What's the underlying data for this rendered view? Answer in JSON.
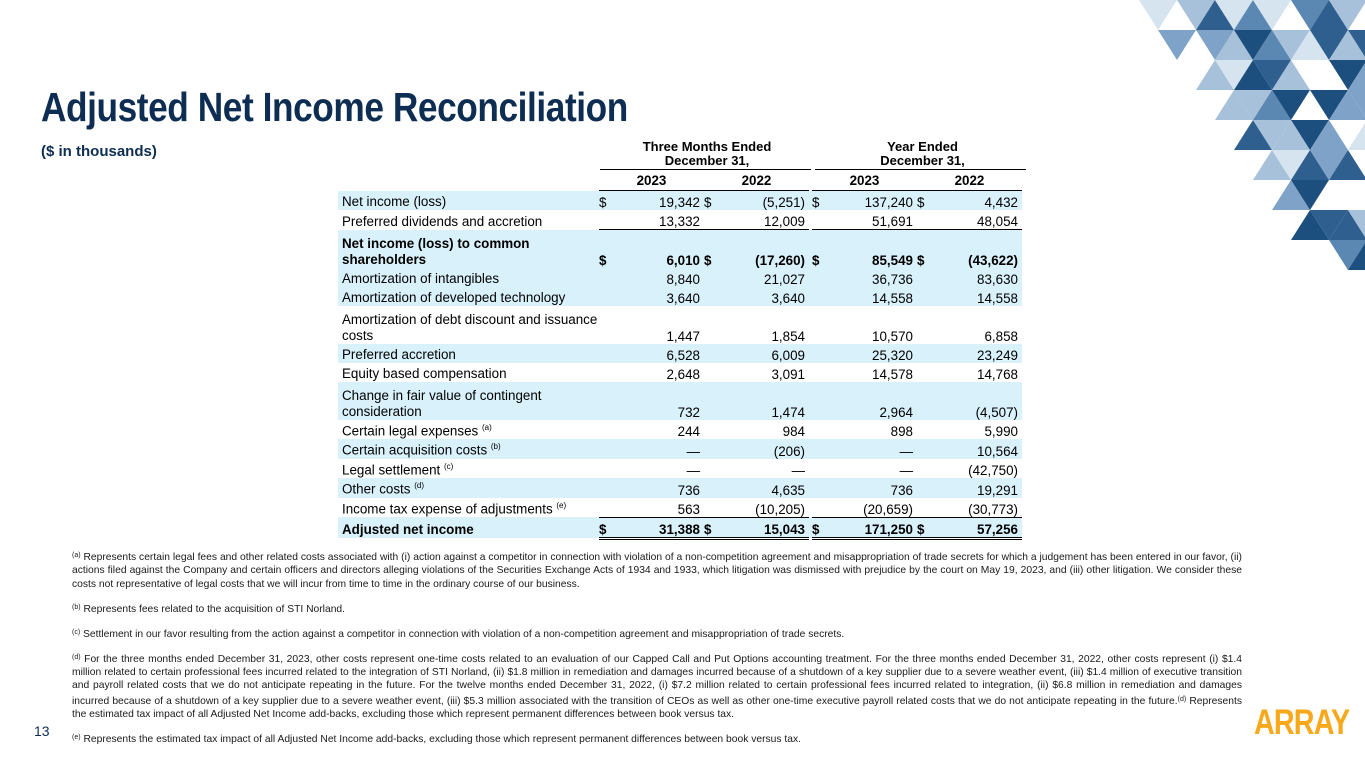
{
  "title": "Adjusted Net Income Reconciliation",
  "subtitle": "($ in thousands)",
  "table": {
    "group_headers": [
      {
        "line1": "Three Months Ended",
        "line2": "December 31,"
      },
      {
        "line1": "Year Ended",
        "line2": "December 31,"
      }
    ],
    "years": [
      "2023",
      "2022",
      "2023",
      "2022"
    ],
    "currency_symbol": "$",
    "rows": [
      {
        "label": "Net income (loss)",
        "values": [
          "19,342",
          "(5,251)",
          "137,240",
          "4,432"
        ]
      },
      {
        "label": "Preferred dividends and accretion",
        "values": [
          "13,332",
          "12,009",
          "51,691",
          "48,054"
        ]
      },
      {
        "label": "Net income (loss) to common shareholders",
        "values": [
          "6,010",
          "(17,260)",
          "85,549",
          "(43,622)"
        ]
      },
      {
        "label": "Amortization of intangibles",
        "values": [
          "8,840",
          "21,027",
          "36,736",
          "83,630"
        ]
      },
      {
        "label": "Amortization of developed technology",
        "values": [
          "3,640",
          "3,640",
          "14,558",
          "14,558"
        ]
      },
      {
        "label": "Amortization of debt discount and issuance costs",
        "values": [
          "1,447",
          "1,854",
          "10,570",
          "6,858"
        ]
      },
      {
        "label": "Preferred accretion",
        "values": [
          "6,528",
          "6,009",
          "25,320",
          "23,249"
        ]
      },
      {
        "label": "Equity based compensation",
        "values": [
          "2,648",
          "3,091",
          "14,578",
          "14,768"
        ]
      },
      {
        "label": "Change in fair value of contingent consideration",
        "values": [
          "732",
          "1,474",
          "2,964",
          "(4,507)"
        ]
      },
      {
        "label": "Certain legal expenses",
        "note": "(a)",
        "values": [
          "244",
          "984",
          "898",
          "5,990"
        ]
      },
      {
        "label": "Certain acquisition costs",
        "note": "(b)",
        "values": [
          "—",
          "(206)",
          "—",
          "10,564"
        ]
      },
      {
        "label": "Legal settlement",
        "note": "(c)",
        "values": [
          "—",
          "—",
          "—",
          "(42,750)"
        ]
      },
      {
        "label": "Other costs",
        "note": "(d)",
        "values": [
          "736",
          "4,635",
          "736",
          "19,291"
        ]
      },
      {
        "label": "Income tax expense of adjustments",
        "note": "(e)",
        "values": [
          "563",
          "(10,205)",
          "(20,659)",
          "(30,773)"
        ]
      },
      {
        "label": "Adjusted net income",
        "values": [
          "31,388",
          "15,043",
          "171,250",
          "57,256"
        ]
      }
    ]
  },
  "footnotes": {
    "a": {
      "marker": "(a)",
      "text": "Represents certain legal fees and other related costs associated with (i) action against a competitor in connection with violation of a non-competition agreement and misappropriation of trade secrets for which a judgement has been entered in our favor, (ii) actions filed against the Company and certain officers and directors alleging violations of the Securities Exchange Acts of 1934 and 1933, which litigation was dismissed with prejudice by the court on May 19, 2023, and (iii) other litigation. We consider these costs not representative of legal costs that we will incur from time to time in the ordinary course of our business."
    },
    "b": {
      "marker": "(b)",
      "text": "Represents fees related to the acquisition of STI Norland."
    },
    "c": {
      "marker": "(c)",
      "text": "Settlement in our favor resulting from the action against a competitor in connection with violation of a non-competition agreement and misappropriation of trade secrets."
    },
    "d": {
      "marker": "(d)",
      "text": "For the three months ended December 31, 2023, other costs represent one-time costs related to an evaluation of our Capped Call and Put Options accounting treatment. For the three months ended December 31, 2022, other costs represent (i) $1.4 million related to certain professional fees incurred related to the integration of STI Norland, (ii) $1.8 million in remediation and damages incurred because of a shutdown of a key supplier due to a severe weather event, (iii) $1.4 million of executive transition and payroll related costs that we do not anticipate repeating in the future. For the twelve months ended December 31, 2022, (i) $7.2 million related to certain professional fees incurred related to integration, (ii) $6.8 million in remediation and damages incurred because of a shutdown of a key supplier due to a severe weather event, (iii) $5.3 million associated with the transition of CEOs as well as other one-time executive payroll related costs that we do not anticipate repeating in the future.",
      "marker2": "(d)",
      "text2": "Represents the estimated tax impact of all Adjusted Net Income add-backs, excluding those which represent permanent differences between book versus tax."
    },
    "e": {
      "marker": "(e)",
      "text": "Represents the estimated tax impact of all Adjusted Net Income add-backs, excluding those which represent permanent differences between book versus tax."
    }
  },
  "page_number": "13",
  "logo_text": "ARRAY",
  "colors": {
    "title": "#0d2d52",
    "row_shade": "#d9f1fb",
    "logo": "#f7a81b"
  }
}
